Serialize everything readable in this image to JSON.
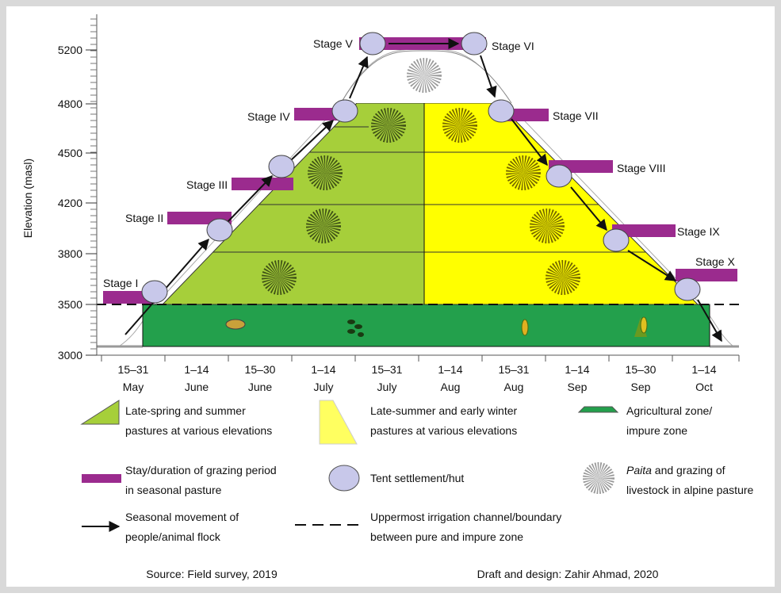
{
  "y_axis": {
    "label": "Elevation (masl)",
    "ticks": [
      "5200",
      "4800",
      "4500",
      "4200",
      "3800",
      "3500",
      "3000"
    ]
  },
  "x_axis": {
    "columns": [
      [
        "15–31",
        "May"
      ],
      [
        "1–14",
        "June"
      ],
      [
        "15–30",
        "June"
      ],
      [
        "1–14",
        "July"
      ],
      [
        "15–31",
        "July"
      ],
      [
        "1–14",
        "Aug"
      ],
      [
        "15–31",
        "Aug"
      ],
      [
        "1–14",
        "Sep"
      ],
      [
        "15–30",
        "Sep"
      ],
      [
        "1–14",
        "Oct"
      ]
    ]
  },
  "stages": [
    "Stage I",
    "Stage II",
    "Stage III",
    "Stage IV",
    "Stage V",
    "Stage VI",
    "Stage VII",
    "Stage VIII",
    "Stage IX",
    "Stage X"
  ],
  "legend": {
    "summer": [
      "Late-spring and summer",
      "pastures at various elevations"
    ],
    "winter": [
      "Late-summer and early winter",
      "pastures at various elevations"
    ],
    "agri": [
      "Agricultural zone/",
      "impure zone"
    ],
    "stay": [
      "Stay/duration of grazing period",
      "in seasonal pasture"
    ],
    "tent": "Tent settlement/hut",
    "paita": {
      "italic": "Paita",
      "rest": " and grazing of",
      "line2": "livestock in alpine pasture"
    },
    "movement": [
      "Seasonal movement of",
      "people/animal flock"
    ],
    "boundary": [
      "Uppermost irrigation channel/boundary",
      "between pure and impure zone"
    ]
  },
  "footer": {
    "source": "Source: Field survey, 2019",
    "design": "Draft and design: Zahir Ahmad, 2020"
  }
}
